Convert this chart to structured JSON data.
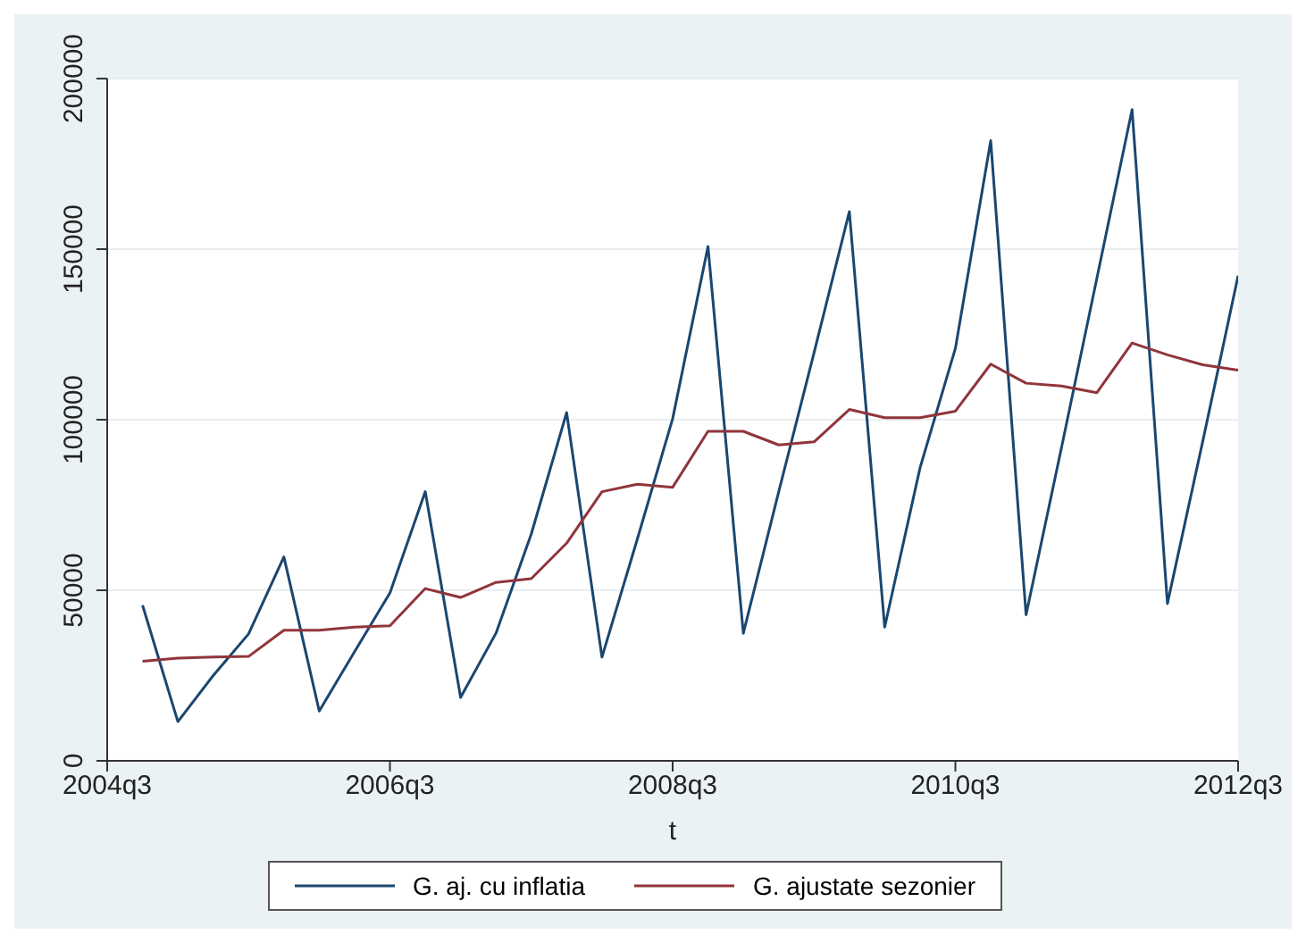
{
  "chart_data": {
    "type": "line",
    "xlabel": "t",
    "categories": [
      "2004q3",
      null,
      null,
      null,
      null,
      null,
      null,
      null,
      "2006q3",
      null,
      null,
      null,
      null,
      null,
      null,
      null,
      "2008q3",
      null,
      null,
      null,
      null,
      null,
      null,
      null,
      "2010q3",
      null,
      null,
      null,
      null,
      null,
      null,
      null,
      "2012q3"
    ],
    "series": [
      {
        "name": "G. aj. cu inflatia",
        "color": "#1a476f",
        "values": [
          null,
          45600,
          11500,
          25000,
          37200,
          59800,
          14600,
          32000,
          49200,
          78900,
          18600,
          37400,
          66500,
          102100,
          30400,
          65000,
          100300,
          150800,
          37400,
          78800,
          119600,
          161000,
          39200,
          85900,
          120900,
          181800,
          42800,
          91700,
          141300,
          190900,
          46100,
          93700,
          142200
        ]
      },
      {
        "name": "G. ajustate sezonier",
        "color": "#90353b",
        "values": [
          null,
          29200,
          30100,
          30400,
          30600,
          38300,
          38300,
          39200,
          39600,
          50500,
          47900,
          52300,
          53400,
          63800,
          78900,
          81100,
          80200,
          96600,
          96600,
          92600,
          93500,
          103000,
          100600,
          100600,
          102500,
          116300,
          110700,
          109900,
          107900,
          122500,
          119000,
          116100,
          114500
        ]
      }
    ],
    "ylim": [
      0,
      200000
    ],
    "yticks": [
      0,
      50000,
      100000,
      150000,
      200000
    ],
    "grid": "y",
    "legend": "bottom",
    "marker": "none",
    "line_style": "solid"
  }
}
